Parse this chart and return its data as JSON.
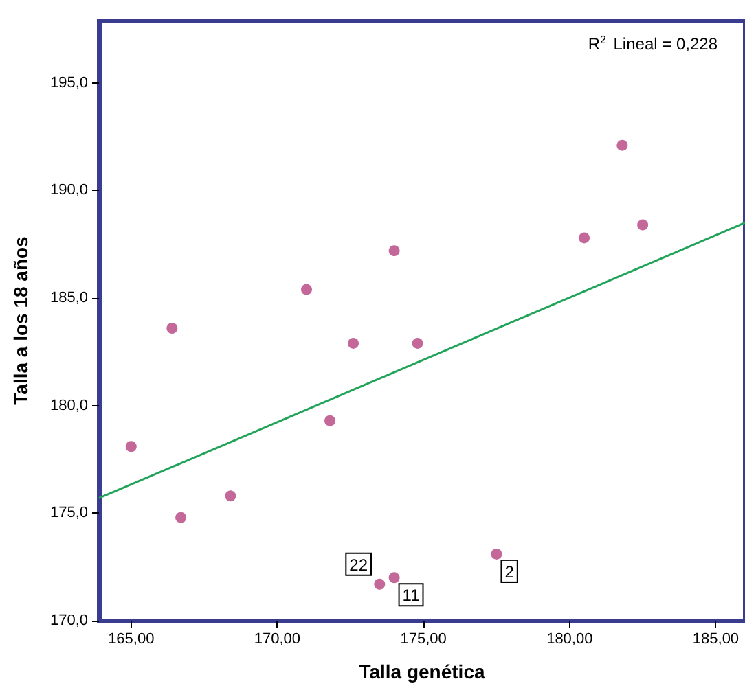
{
  "chart_data": {
    "type": "scatter",
    "xlabel": "Talla genética",
    "ylabel": "Talla a los 18 años",
    "xlim": [
      163.9,
      186
    ],
    "ylim": [
      170,
      197.9
    ],
    "xticks": [
      {
        "value": 165,
        "label": "165,00"
      },
      {
        "value": 170,
        "label": "170,00"
      },
      {
        "value": 175,
        "label": "175,00"
      },
      {
        "value": 180,
        "label": "180,00"
      },
      {
        "value": 185,
        "label": "185,00"
      }
    ],
    "yticks": [
      {
        "value": 170,
        "label": "170,0"
      },
      {
        "value": 175,
        "label": "175,0"
      },
      {
        "value": 180,
        "label": "180,0"
      },
      {
        "value": 185,
        "label": "185,0"
      },
      {
        "value": 190,
        "label": "190,0"
      },
      {
        "value": 195,
        "label": "195,0"
      }
    ],
    "series": [
      {
        "marker": "circle",
        "color": "#b5427f",
        "x": [
          165.0,
          166.4,
          166.7,
          168.4,
          171.0,
          171.8,
          172.6,
          173.5,
          174.0,
          174.0,
          174.8,
          177.5,
          180.5,
          181.8,
          182.5
        ],
        "values": [
          178.1,
          183.6,
          174.8,
          175.8,
          185.4,
          179.3,
          182.9,
          171.7,
          172.0,
          187.2,
          182.9,
          173.1,
          187.8,
          192.1,
          188.4
        ]
      },
      {
        "type": "line",
        "marker": "none",
        "color": "#22a35a",
        "x": [
          163.9,
          186
        ],
        "values": [
          175.7,
          188.5
        ]
      }
    ],
    "annotations": [
      "R$^{2}$ Lineal = 0,228",
      {
        "text": "22",
        "x": 173.5,
        "y": 171.7
      },
      {
        "text": "11",
        "x": 174.0,
        "y": 172.0
      },
      {
        "text": "2",
        "x": 177.5,
        "y": 173.1
      }
    ]
  }
}
